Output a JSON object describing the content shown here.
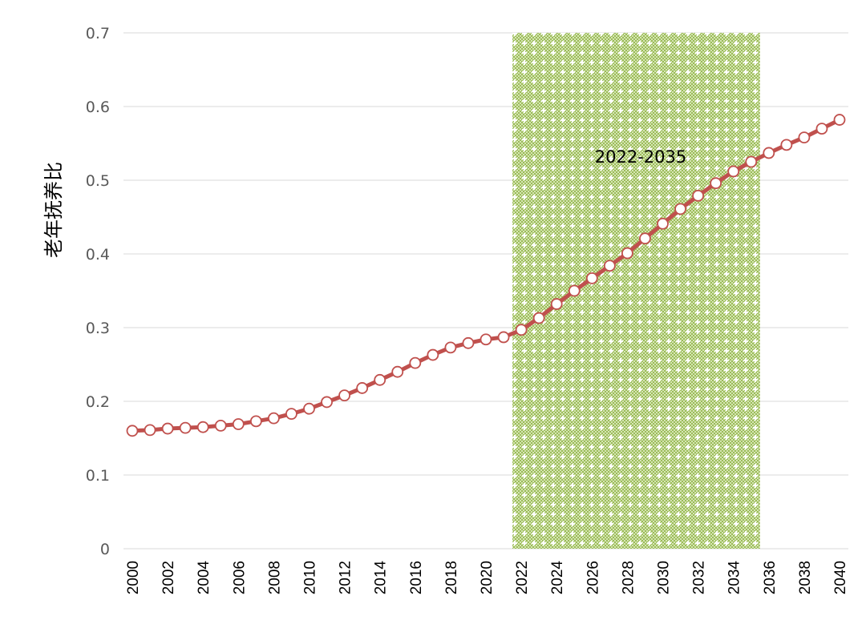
{
  "chart_data": {
    "type": "line",
    "title": "",
    "xlabel": "",
    "ylabel": "老年抚养比",
    "ylim": [
      0,
      0.7
    ],
    "xlim": [
      2000,
      2040
    ],
    "grid": true,
    "yticks": [
      "0",
      "0.1",
      "0.2",
      "0.3",
      "0.4",
      "0.5",
      "0.6",
      "0.7"
    ],
    "ytick_values": [
      0,
      0.1,
      0.2,
      0.3,
      0.4,
      0.5,
      0.6,
      0.7
    ],
    "xticks": [
      "2000",
      "2002",
      "2004",
      "2006",
      "2008",
      "2010",
      "2012",
      "2014",
      "2016",
      "2018",
      "2020",
      "2022",
      "2024",
      "2026",
      "2028",
      "2030",
      "2032",
      "2034",
      "2036",
      "2038",
      "2040"
    ],
    "xtick_values": [
      2000,
      2002,
      2004,
      2006,
      2008,
      2010,
      2012,
      2014,
      2016,
      2018,
      2020,
      2022,
      2024,
      2026,
      2028,
      2030,
      2032,
      2034,
      2036,
      2038,
      2040
    ],
    "x": [
      2000,
      2001,
      2002,
      2003,
      2004,
      2005,
      2006,
      2007,
      2008,
      2009,
      2010,
      2011,
      2012,
      2013,
      2014,
      2015,
      2016,
      2017,
      2018,
      2019,
      2020,
      2021,
      2022,
      2023,
      2024,
      2025,
      2026,
      2027,
      2028,
      2029,
      2030,
      2031,
      2032,
      2033,
      2034,
      2035,
      2036,
      2037,
      2038,
      2039,
      2040
    ],
    "series": [
      {
        "name": "老年抚养比",
        "color": "#c0504d",
        "marker_fill": "#ffffff",
        "values": [
          0.16,
          0.161,
          0.163,
          0.164,
          0.165,
          0.167,
          0.169,
          0.173,
          0.177,
          0.183,
          0.19,
          0.199,
          0.208,
          0.218,
          0.229,
          0.24,
          0.252,
          0.263,
          0.273,
          0.279,
          0.284,
          0.287,
          0.297,
          0.313,
          0.332,
          0.35,
          0.367,
          0.384,
          0.401,
          0.421,
          0.441,
          0.461,
          0.479,
          0.496,
          0.512,
          0.525,
          0.537,
          0.548,
          0.558,
          0.57,
          0.582
        ]
      }
    ],
    "shaded_region": {
      "x_start": 2021.5,
      "x_end": 2035.5,
      "label": "2022-2035",
      "color": "#9bbb59"
    },
    "gridline_color": "#d9d9d9"
  }
}
